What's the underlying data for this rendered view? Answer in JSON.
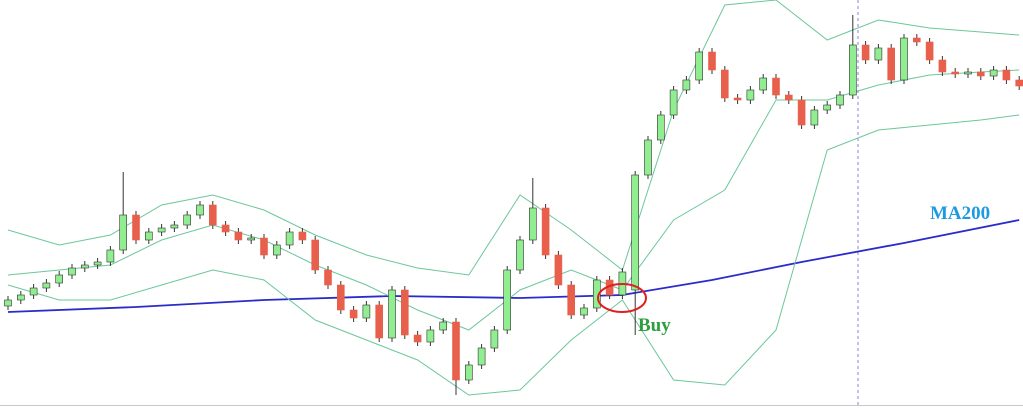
{
  "chart_data": {
    "type": "candlestick",
    "ylim": [
      0,
      408
    ],
    "up_color": "#90ee90",
    "down_color": "#e8604c",
    "edge_color": "#333333",
    "annotation": "Buy",
    "annotation_color": "#2e9e3e",
    "open": [
      102,
      108,
      113,
      120,
      125,
      133,
      140,
      143,
      146,
      158,
      193,
      168,
      176,
      180,
      183,
      193,
      203,
      183,
      176,
      168,
      170,
      153,
      163,
      176,
      168,
      138,
      123,
      98,
      90,
      103,
      70,
      118,
      73,
      66,
      78,
      86,
      28,
      43,
      60,
      78,
      138,
      168,
      200,
      153,
      123,
      93,
      100,
      128,
      113,
      118,
      233,
      268,
      293,
      318,
      328,
      356,
      338,
      310,
      308,
      318,
      330,
      313,
      308,
      283,
      298,
      303,
      313,
      363,
      348,
      360,
      328,
      370,
      366,
      348,
      336,
      334,
      336,
      332,
      338,
      328
    ],
    "high": [
      112,
      117,
      124,
      129,
      137,
      144,
      147,
      150,
      162,
      236,
      197,
      180,
      184,
      187,
      197,
      207,
      207,
      187,
      180,
      174,
      174,
      167,
      180,
      180,
      172,
      142,
      127,
      102,
      107,
      107,
      122,
      122,
      77,
      82,
      90,
      90,
      47,
      64,
      82,
      142,
      172,
      230,
      204,
      157,
      127,
      104,
      132,
      132,
      140,
      237,
      272,
      297,
      322,
      332,
      360,
      360,
      342,
      314,
      322,
      334,
      334,
      317,
      312,
      302,
      307,
      317,
      393,
      367,
      364,
      364,
      374,
      374,
      370,
      352,
      340,
      340,
      340,
      342,
      342,
      332
    ],
    "low": [
      98,
      104,
      109,
      116,
      121,
      129,
      136,
      139,
      142,
      154,
      164,
      164,
      172,
      176,
      179,
      189,
      179,
      172,
      164,
      164,
      149,
      149,
      159,
      164,
      134,
      119,
      94,
      86,
      86,
      66,
      66,
      69,
      62,
      62,
      74,
      13,
      24,
      39,
      56,
      74,
      134,
      164,
      149,
      119,
      89,
      89,
      96,
      109,
      109,
      73,
      229,
      264,
      289,
      314,
      324,
      334,
      306,
      304,
      304,
      314,
      309,
      304,
      279,
      279,
      294,
      299,
      309,
      344,
      344,
      324,
      324,
      362,
      344,
      332,
      330,
      330,
      328,
      328,
      324,
      318
    ],
    "close": [
      108,
      113,
      120,
      125,
      133,
      140,
      143,
      146,
      158,
      193,
      168,
      176,
      180,
      183,
      193,
      203,
      183,
      176,
      168,
      170,
      153,
      163,
      176,
      168,
      138,
      123,
      98,
      90,
      103,
      70,
      118,
      73,
      66,
      78,
      86,
      28,
      43,
      60,
      78,
      138,
      168,
      200,
      153,
      123,
      93,
      100,
      128,
      113,
      136,
      233,
      268,
      293,
      318,
      328,
      356,
      338,
      310,
      308,
      318,
      330,
      313,
      308,
      283,
      298,
      303,
      313,
      363,
      348,
      360,
      328,
      370,
      366,
      348,
      336,
      334,
      336,
      332,
      338,
      328,
      322
    ],
    "overlays": [
      {
        "name": "MA200",
        "color": "#2b2bc9",
        "label_color": "#1e9be0",
        "x": [
          0,
          10,
          20,
          30,
          40,
          48,
          55,
          62,
          70,
          79
        ],
        "values": [
          96,
          101,
          108,
          112,
          110,
          113,
          128,
          146,
          165,
          188
        ]
      },
      {
        "color": "#6cc79a",
        "x": [
          0,
          4,
          8,
          12,
          16,
          20,
          24,
          28,
          32,
          36,
          40,
          44,
          48,
          52,
          56,
          60,
          64,
          68,
          72,
          76,
          79
        ],
        "values": [
          178,
          163,
          173,
          203,
          213,
          198,
          173,
          153,
          140,
          133,
          213,
          178,
          138,
          298,
          403,
          408,
          368,
          388,
          380,
          376,
          373
        ]
      },
      {
        "color": "#6cc79a",
        "x": [
          0,
          4,
          8,
          12,
          16,
          20,
          24,
          28,
          32,
          36,
          40,
          44,
          48,
          52,
          56,
          60,
          64,
          68,
          72,
          76,
          79
        ],
        "values": [
          133,
          138,
          143,
          168,
          183,
          168,
          143,
          123,
          98,
          78,
          118,
          138,
          118,
          188,
          218,
          308,
          308,
          323,
          333,
          336,
          338
        ]
      },
      {
        "color": "#6cc79a",
        "x": [
          0,
          4,
          8,
          12,
          16,
          20,
          24,
          28,
          32,
          36,
          40,
          44,
          48,
          52,
          56,
          60,
          64,
          68,
          72,
          76,
          79
        ],
        "values": [
          123,
          108,
          108,
          123,
          138,
          128,
          88,
          68,
          48,
          13,
          18,
          68,
          108,
          28,
          23,
          78,
          258,
          278,
          283,
          288,
          293
        ]
      }
    ]
  }
}
